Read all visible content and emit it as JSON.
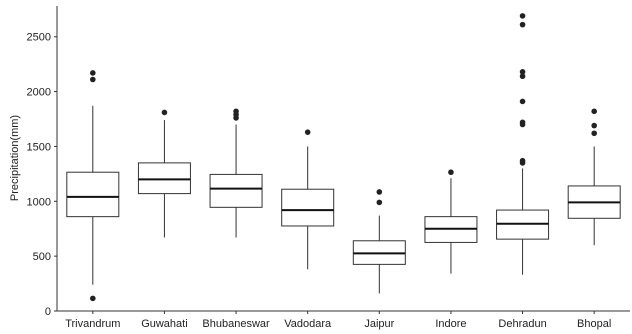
{
  "chart_data": {
    "type": "boxplot",
    "title": "",
    "xlabel": "",
    "ylabel": "Precipitation(mm)",
    "ylim": [
      0,
      2780
    ],
    "yticks": [
      0,
      500,
      1000,
      1500,
      2000,
      2500
    ],
    "grid": false,
    "colors": {
      "box_fill": "#ffffff",
      "stroke": "#333333",
      "outlier": "#222222"
    },
    "categories": [
      "Trivandrum",
      "Guwahati",
      "Bhubaneswar",
      "Vadodara",
      "Jaipur",
      "Indore",
      "Dehradun",
      "Bhopal"
    ],
    "boxes": [
      {
        "q1": 860,
        "median": 1040,
        "q3": 1265,
        "whisker_low": 240,
        "whisker_high": 1870,
        "outliers": [
          2170,
          2110,
          115
        ]
      },
      {
        "q1": 1070,
        "median": 1200,
        "q3": 1350,
        "whisker_low": 670,
        "whisker_high": 1740,
        "outliers": [
          1810
        ]
      },
      {
        "q1": 945,
        "median": 1115,
        "q3": 1245,
        "whisker_low": 670,
        "whisker_high": 1700,
        "outliers": [
          1820,
          1790,
          1760
        ]
      },
      {
        "q1": 775,
        "median": 920,
        "q3": 1110,
        "whisker_low": 380,
        "whisker_high": 1500,
        "outliers": [
          1630
        ]
      },
      {
        "q1": 425,
        "median": 525,
        "q3": 640,
        "whisker_low": 160,
        "whisker_high": 870,
        "outliers": [
          1085,
          990
        ]
      },
      {
        "q1": 625,
        "median": 750,
        "q3": 860,
        "whisker_low": 340,
        "whisker_high": 1210,
        "outliers": [
          1265
        ]
      },
      {
        "q1": 655,
        "median": 795,
        "q3": 920,
        "whisker_low": 330,
        "whisker_high": 1300,
        "outliers": [
          2690,
          2610,
          2180,
          2140,
          1910,
          1720,
          1700,
          1370,
          1350
        ]
      },
      {
        "q1": 845,
        "median": 990,
        "q3": 1140,
        "whisker_low": 600,
        "whisker_high": 1500,
        "outliers": [
          1820,
          1690,
          1620
        ]
      }
    ]
  }
}
